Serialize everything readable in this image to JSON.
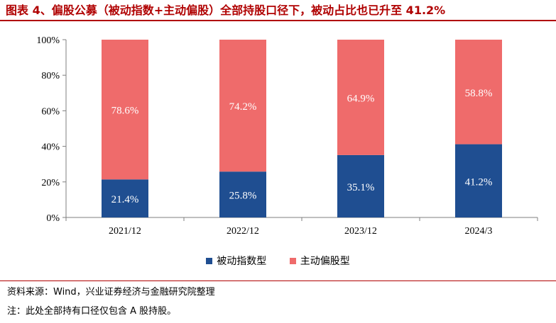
{
  "title": "图表 4、偏股公募（被动指数+主动偏股）全部持股口径下，被动占比也已升至 41.2%",
  "colors": {
    "title": "#b00000",
    "passive": "#1f4e91",
    "active": "#ef6b6b",
    "axis": "#7f7f7f"
  },
  "chart_data": {
    "type": "bar",
    "stacked": true,
    "categories": [
      "2021/12",
      "2022/12",
      "2023/12",
      "2024/3"
    ],
    "series": [
      {
        "name": "被动指数型",
        "values": [
          21.4,
          25.8,
          35.1,
          41.2
        ],
        "labels": [
          "21.4%",
          "25.8%",
          "35.1%",
          "41.2%"
        ]
      },
      {
        "name": "主动偏股型",
        "values": [
          78.6,
          74.2,
          64.9,
          58.8
        ],
        "labels": [
          "78.6%",
          "74.2%",
          "64.9%",
          "58.8%"
        ]
      }
    ],
    "ylim": [
      0,
      100
    ],
    "yticks": [
      "0%",
      "20%",
      "40%",
      "60%",
      "80%",
      "100%"
    ],
    "legend_position": "bottom",
    "grid": false
  },
  "source": "资料来源：Wind，兴业证券经济与金融研究院整理",
  "footnote": "注：此处全部持有口径仅包含 A 股持股。"
}
